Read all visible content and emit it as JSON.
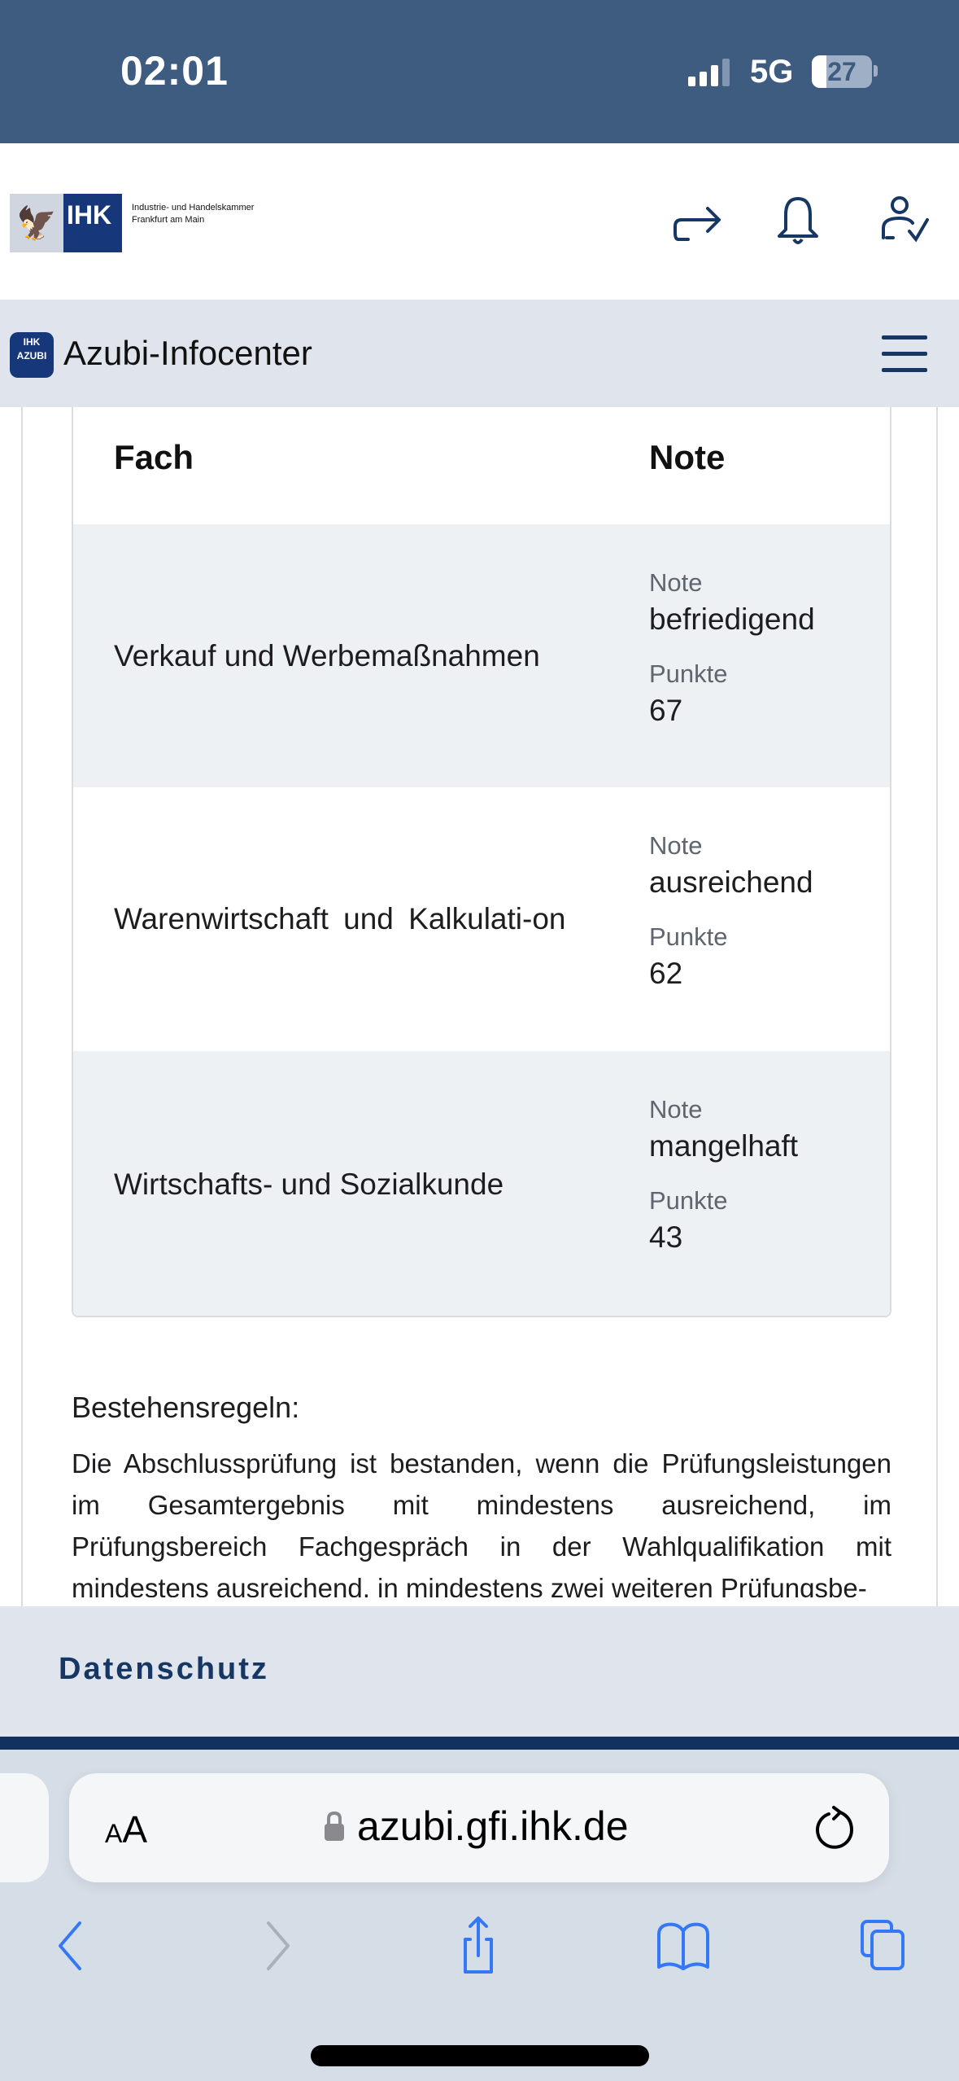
{
  "status_bar": {
    "time": "02:01",
    "network": "5G",
    "battery": "27"
  },
  "header": {
    "logo_text": "IHK",
    "logo_subtitle_1": "Industrie- und Handelskammer",
    "logo_subtitle_2": "Frankfurt am Main"
  },
  "app_bar": {
    "badge_top": "IHK",
    "badge_bottom": "AZUBI",
    "title": "Azubi-Infocenter"
  },
  "table": {
    "headers": [
      "Fach",
      "Note"
    ],
    "rows": [
      {
        "subject": "Verkauf und Werbemaßnahmen",
        "note_label": "Note",
        "note": "befriedigend",
        "points_label": "Punkte",
        "points": "67"
      },
      {
        "subject": "Warenwirtschaft und Kalkulati-on",
        "note_label": "Note",
        "note": "ausreichend",
        "points_label": "Punkte",
        "points": "62"
      },
      {
        "subject": "Wirtschafts- und Sozialkunde",
        "note_label": "Note",
        "note": "mangelhaft",
        "points_label": "Punkte",
        "points": "43"
      }
    ]
  },
  "rules": {
    "title": "Bestehensregeln:",
    "text": "Die Abschlussprüfung ist bestanden, wenn die Prüfungsleistungen im Gesamtergebnis mit mindestens ausreichend, im Prüfungsbereich Fachgespräch in der Wahlqualifikation mit mindestens ausreichend, in mindestens zwei weiteren Prüfungsbe-"
  },
  "footer": {
    "privacy_link": "Datenschutz"
  },
  "browser": {
    "text_size_label_small": "A",
    "text_size_label_large": "A",
    "url": "azubi.gfi.ihk.de"
  },
  "colors": {
    "status_bar": "#3e5c80",
    "brand_navy": "#163763",
    "app_bar": "#e0e5ed",
    "row_alt": "#eef1f4",
    "safari_blue": "#3478f6"
  }
}
